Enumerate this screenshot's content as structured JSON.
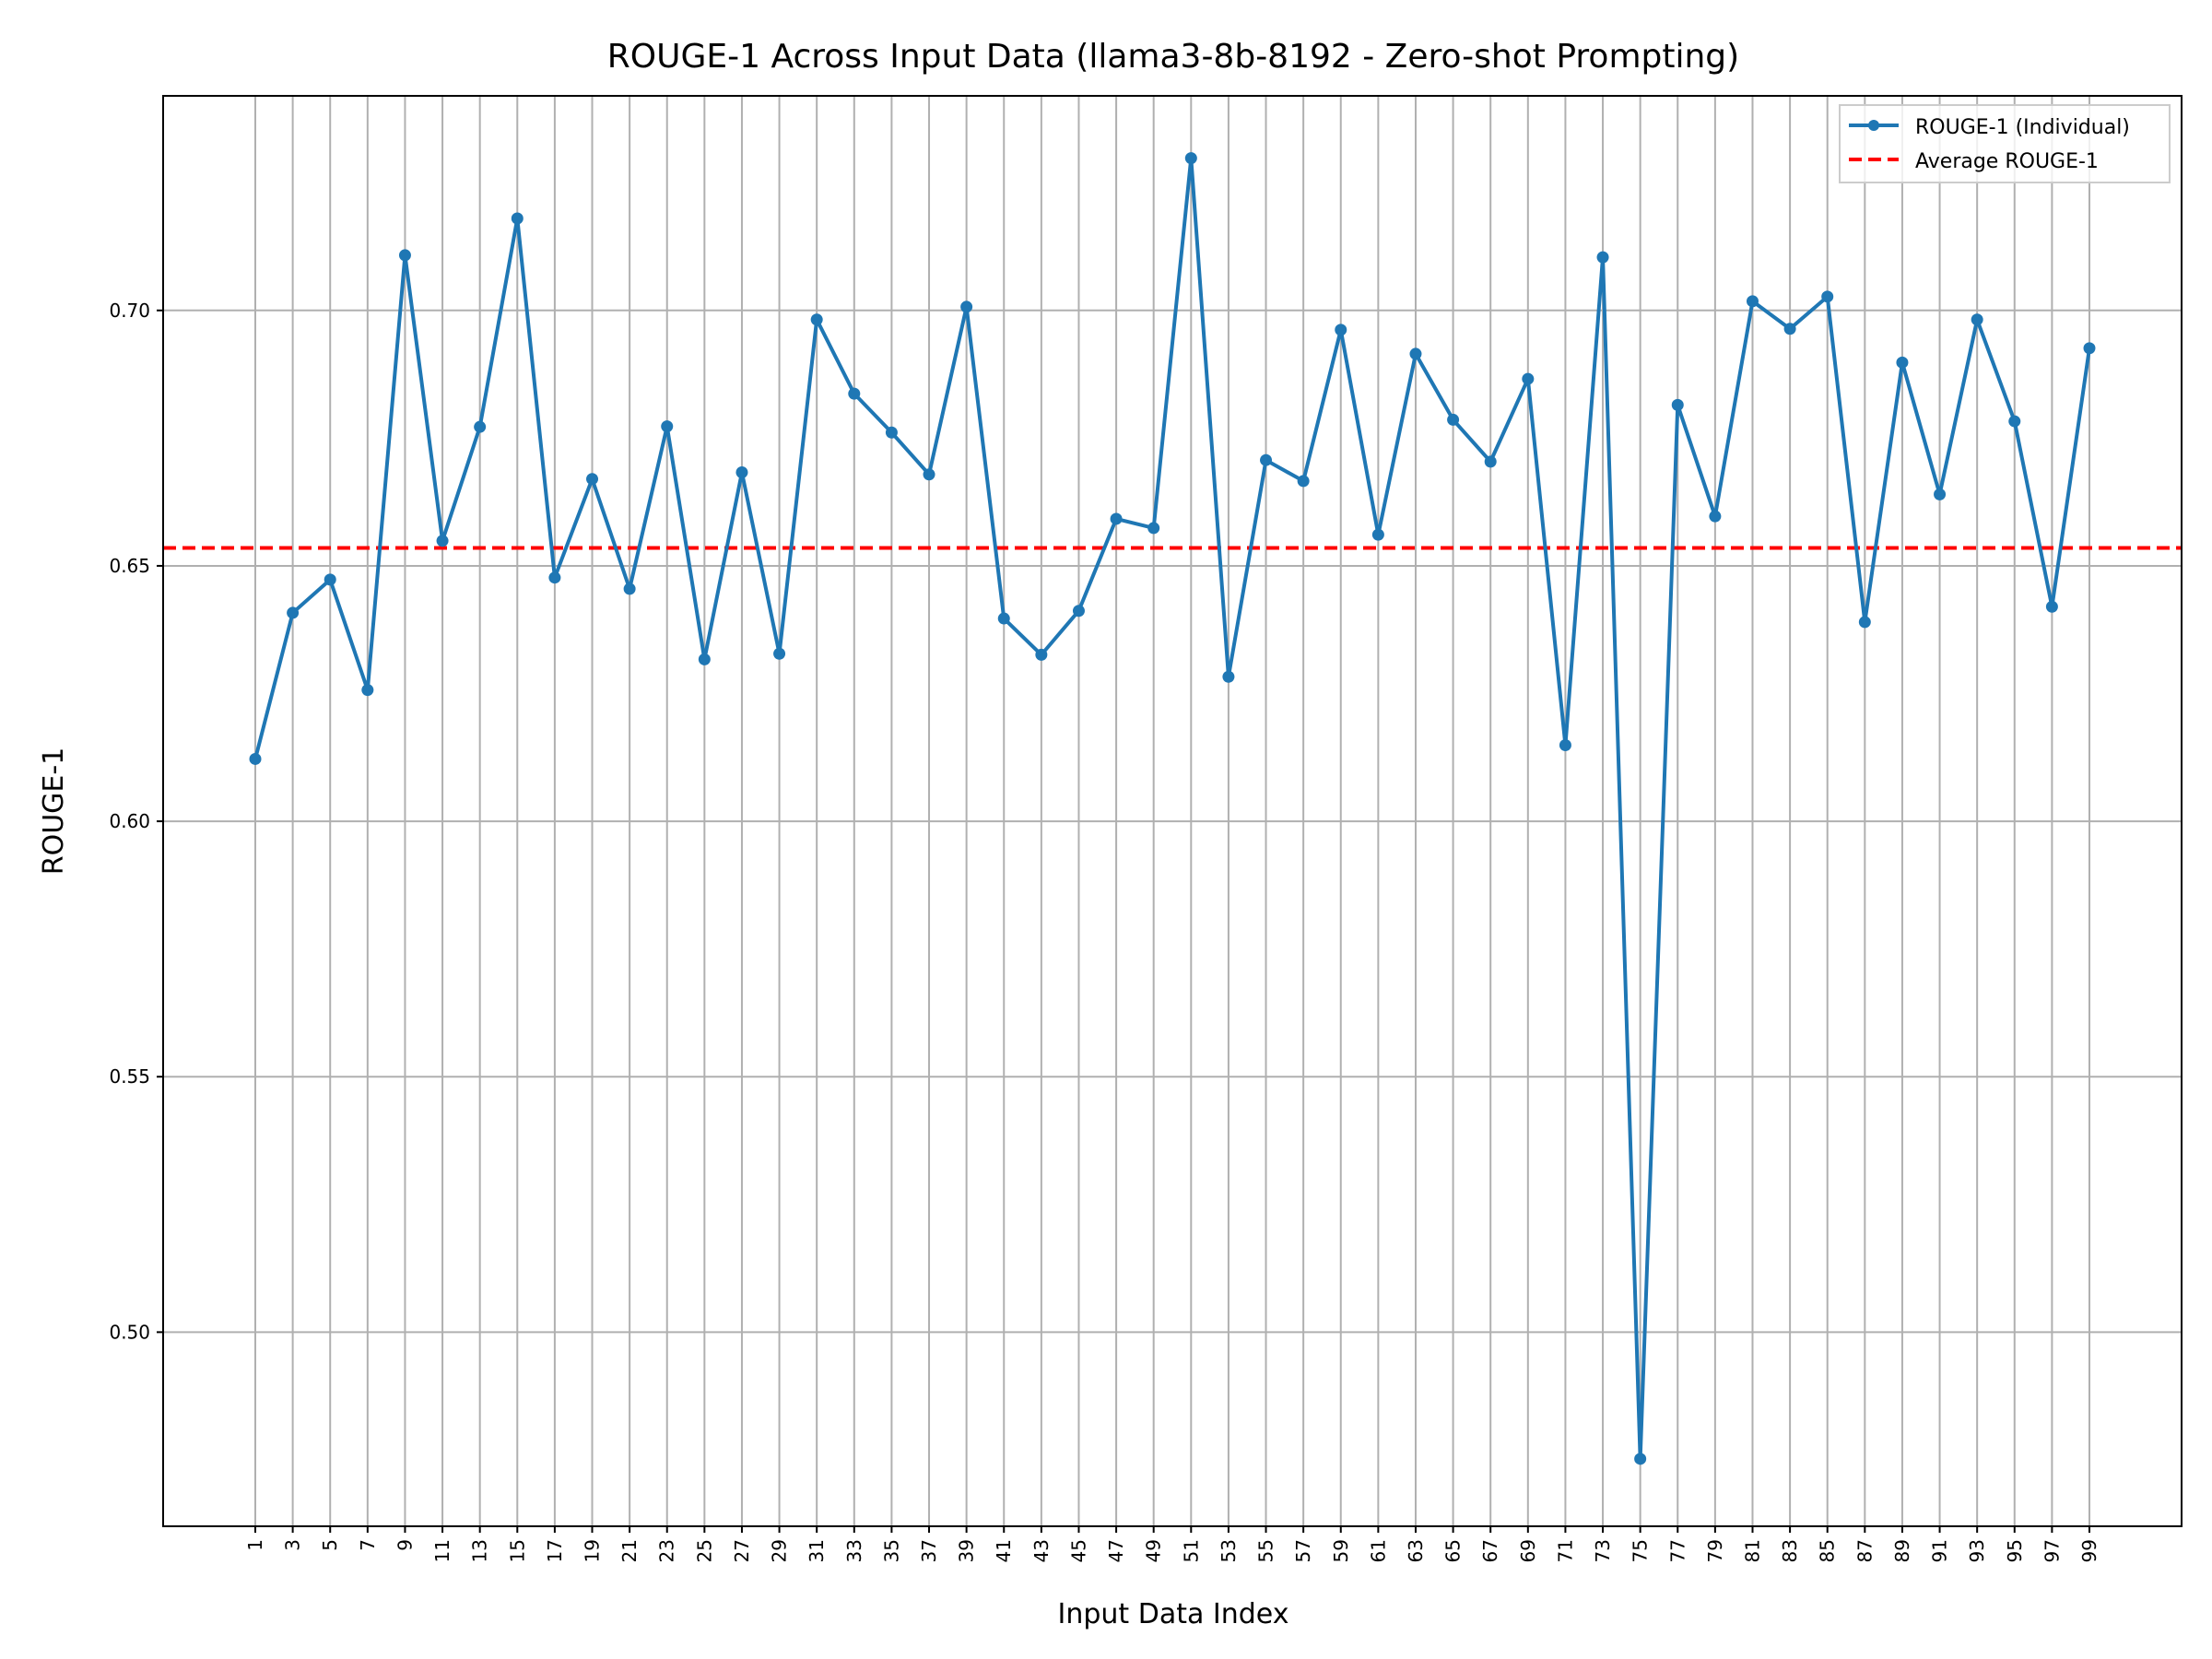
{
  "chart_data": {
    "type": "line",
    "title": "ROUGE-1 Across Input Data (llama3-8b-8192 - Zero-shot Prompting)",
    "xlabel": "Input Data Index",
    "ylabel": "ROUGE-1",
    "ylim": [
      0.462,
      0.742
    ],
    "grid": true,
    "legend_position": "top-right",
    "x": [
      1,
      3,
      5,
      7,
      9,
      11,
      13,
      15,
      17,
      19,
      21,
      23,
      25,
      27,
      29,
      31,
      33,
      35,
      37,
      39,
      41,
      43,
      45,
      47,
      49,
      51,
      53,
      55,
      57,
      59,
      61,
      63,
      65,
      67,
      69,
      71,
      73,
      75,
      77,
      79,
      81,
      83,
      85,
      87,
      89,
      91,
      93,
      95,
      97,
      99
    ],
    "xtick_labels": [
      "1",
      "3",
      "5",
      "7",
      "9",
      "11",
      "13",
      "15",
      "17",
      "19",
      "21",
      "23",
      "25",
      "27",
      "29",
      "31",
      "33",
      "35",
      "37",
      "39",
      "41",
      "43",
      "45",
      "47",
      "49",
      "51",
      "53",
      "55",
      "57",
      "59",
      "61",
      "63",
      "65",
      "67",
      "69",
      "71",
      "73",
      "75",
      "77",
      "79",
      "81",
      "83",
      "85",
      "87",
      "89",
      "91",
      "93",
      "95",
      "97",
      "99"
    ],
    "yticks": [
      0.5,
      0.55,
      0.6,
      0.65,
      0.7
    ],
    "ytick_labels": [
      "0.50",
      "0.55",
      "0.60",
      "0.65",
      "0.70"
    ],
    "series": [
      {
        "name": "ROUGE-1 (Individual)",
        "color": "#1f77b4",
        "style": "solid-with-markers",
        "values": [
          0.6122,
          0.6408,
          0.6473,
          0.6257,
          0.7108,
          0.6549,
          0.6772,
          0.718,
          0.6477,
          0.667,
          0.6455,
          0.6773,
          0.6317,
          0.6683,
          0.6328,
          0.6982,
          0.6837,
          0.6761,
          0.6679,
          0.7007,
          0.6397,
          0.6326,
          0.6412,
          0.6592,
          0.6574,
          0.7298,
          0.6283,
          0.6707,
          0.6666,
          0.6962,
          0.6561,
          0.6915,
          0.6786,
          0.6704,
          0.6866,
          0.6149,
          0.7104,
          0.4752,
          0.6815,
          0.6597,
          0.7018,
          0.6964,
          0.7027,
          0.639,
          0.6898,
          0.664,
          0.6982,
          0.6783,
          0.642,
          0.6926
        ]
      },
      {
        "name": "Average ROUGE-1",
        "color": "#ff0000",
        "style": "dashed",
        "value": 0.6535
      }
    ]
  }
}
